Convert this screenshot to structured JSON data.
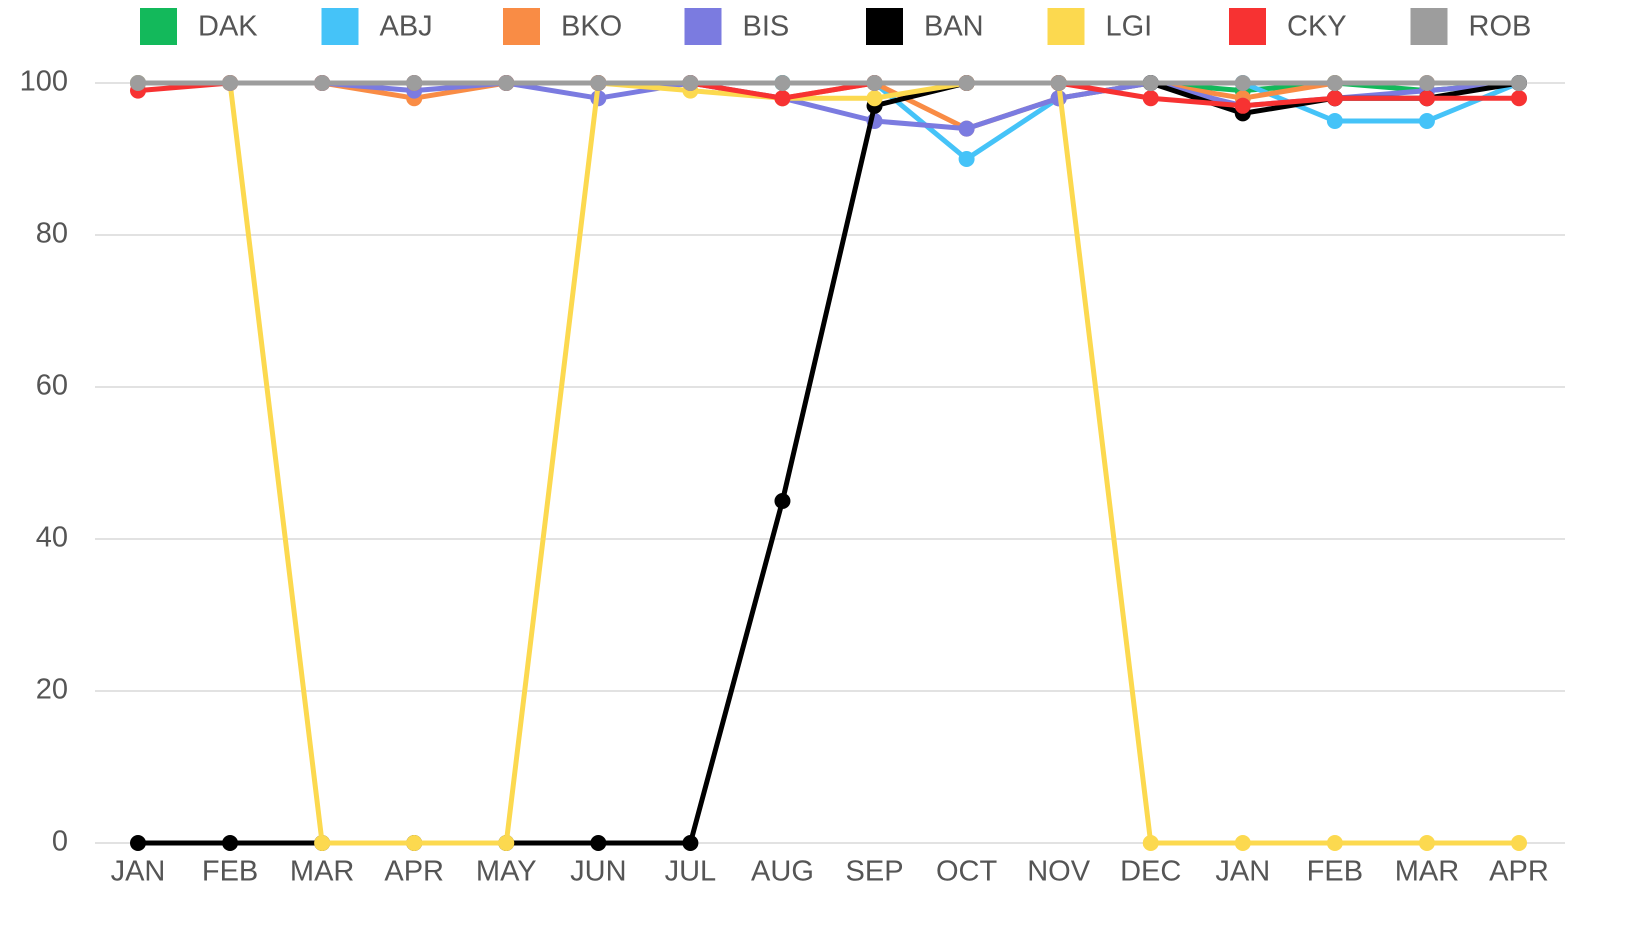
{
  "chart_data": {
    "type": "line",
    "categories": [
      "JAN",
      "FEB",
      "MAR",
      "APR",
      "MAY",
      "JUN",
      "JUL",
      "AUG",
      "SEP",
      "OCT",
      "NOV",
      "DEC",
      "JAN",
      "FEB",
      "MAR",
      "APR"
    ],
    "series": [
      {
        "name": "DAK",
        "color": "#13b95b",
        "values": [
          100,
          100,
          100,
          100,
          100,
          100,
          100,
          100,
          100,
          100,
          100,
          100,
          99,
          100,
          99,
          100
        ]
      },
      {
        "name": "ABJ",
        "color": "#45c3f8",
        "values": [
          100,
          100,
          100,
          100,
          100,
          100,
          100,
          100,
          100,
          90,
          98,
          100,
          100,
          95,
          95,
          100
        ]
      },
      {
        "name": "BKO",
        "color": "#f98c45",
        "values": [
          100,
          100,
          100,
          98,
          100,
          100,
          100,
          98,
          100,
          94,
          98,
          100,
          98,
          100,
          100,
          100
        ]
      },
      {
        "name": "BIS",
        "color": "#7b7be0",
        "values": [
          100,
          100,
          100,
          99,
          100,
          98,
          100,
          98,
          95,
          94,
          98,
          100,
          97,
          98,
          99,
          100
        ]
      },
      {
        "name": "BAN",
        "color": "#000000",
        "values": [
          0,
          0,
          0,
          0,
          0,
          0,
          0,
          45,
          97,
          100,
          100,
          100,
          96,
          98,
          98,
          100
        ]
      },
      {
        "name": "LGI",
        "color": "#fcd94f",
        "values": [
          100,
          100,
          0,
          0,
          0,
          100,
          99,
          98,
          98,
          100,
          100,
          0,
          0,
          0,
          0,
          0
        ]
      },
      {
        "name": "CKY",
        "color": "#f73232",
        "values": [
          99,
          100,
          100,
          100,
          100,
          100,
          100,
          98,
          100,
          100,
          100,
          98,
          97,
          98,
          98,
          98
        ]
      },
      {
        "name": "ROB",
        "color": "#9d9d9d",
        "values": [
          100,
          100,
          100,
          100,
          100,
          100,
          100,
          100,
          100,
          100,
          100,
          100,
          100,
          100,
          100,
          100
        ]
      }
    ],
    "ylim": [
      0,
      100
    ],
    "yticks": [
      0,
      20,
      40,
      60,
      80,
      100
    ],
    "grid": true,
    "legend": "top"
  }
}
